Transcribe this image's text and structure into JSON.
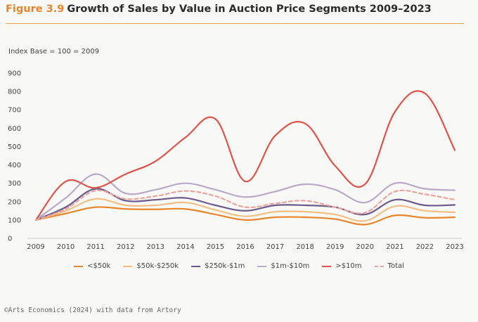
{
  "header": {
    "figure_label": "Figure 3.9",
    "title": "Growth of Sales by Value in Auction Price Segments 2009–2023"
  },
  "chart_data": {
    "type": "line",
    "ylabel": "Index Base = 100 = 2009",
    "ylim": [
      0,
      900
    ],
    "yticks": [
      0,
      100,
      200,
      300,
      400,
      500,
      600,
      700,
      800,
      900
    ],
    "x": [
      "2009",
      "2010",
      "2011",
      "2012",
      "2013",
      "2014",
      "2015",
      "2016",
      "2017",
      "2018",
      "2019",
      "2020",
      "2021",
      "2022",
      "2023"
    ],
    "grid": false,
    "legend_position": "bottom",
    "series": [
      {
        "name": "<$50k",
        "color": "#e8852a",
        "dashed": false,
        "values": [
          100,
          135,
          170,
          160,
          158,
          160,
          130,
          100,
          115,
          115,
          105,
          75,
          125,
          112,
          115
        ]
      },
      {
        "name": "$50k-$250k",
        "color": "#f3be84",
        "dashed": false,
        "values": [
          100,
          150,
          215,
          180,
          180,
          195,
          155,
          120,
          145,
          145,
          130,
          95,
          175,
          150,
          142
        ]
      },
      {
        "name": "$250k-$1m",
        "color": "#6b5a8c",
        "dashed": false,
        "values": [
          100,
          170,
          270,
          205,
          210,
          220,
          180,
          150,
          180,
          180,
          170,
          130,
          210,
          180,
          182
        ]
      },
      {
        "name": "$1m-$10m",
        "color": "#b8aac8",
        "dashed": false,
        "values": [
          100,
          220,
          350,
          245,
          265,
          300,
          265,
          225,
          255,
          295,
          265,
          195,
          300,
          270,
          262
        ]
      },
      {
        "name": ">$10m",
        "color": "#e05348",
        "dashed": false,
        "values": [
          100,
          310,
          275,
          350,
          420,
          550,
          650,
          310,
          560,
          625,
          395,
          295,
          690,
          790,
          480
        ]
      },
      {
        "name": "Total",
        "color": "#eda39c",
        "dashed": true,
        "values": [
          100,
          160,
          260,
          215,
          230,
          258,
          230,
          170,
          190,
          205,
          170,
          140,
          255,
          240,
          210
        ]
      }
    ]
  },
  "source": "©Arts Economics (2024) with data from Artory"
}
